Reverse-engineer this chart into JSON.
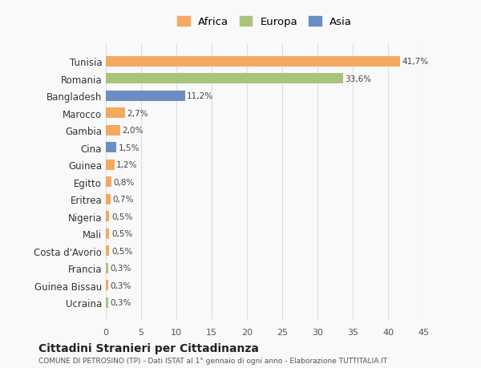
{
  "categories": [
    "Tunisia",
    "Romania",
    "Bangladesh",
    "Marocco",
    "Gambia",
    "Cina",
    "Guinea",
    "Egitto",
    "Eritrea",
    "Nigeria",
    "Mali",
    "Costa d'Avorio",
    "Francia",
    "Guinea Bissau",
    "Ucraina"
  ],
  "values": [
    41.7,
    33.6,
    11.2,
    2.7,
    2.0,
    1.5,
    1.2,
    0.8,
    0.7,
    0.5,
    0.5,
    0.5,
    0.3,
    0.3,
    0.3
  ],
  "labels": [
    "41,7%",
    "33,6%",
    "11,2%",
    "2,7%",
    "2,0%",
    "1,5%",
    "1,2%",
    "0,8%",
    "0,7%",
    "0,5%",
    "0,5%",
    "0,5%",
    "0,3%",
    "0,3%",
    "0,3%"
  ],
  "colors": [
    "#f4a860",
    "#a8c47a",
    "#6b8dc4",
    "#f4a860",
    "#f4a860",
    "#6b8dc4",
    "#f4a860",
    "#f4a860",
    "#f4a860",
    "#f4a860",
    "#f4a860",
    "#f4a860",
    "#a8c47a",
    "#f4a860",
    "#a8c47a"
  ],
  "continent": [
    "Africa",
    "Europa",
    "Asia",
    "Africa",
    "Africa",
    "Asia",
    "Africa",
    "Africa",
    "Africa",
    "Africa",
    "Africa",
    "Africa",
    "Europa",
    "Africa",
    "Europa"
  ],
  "legend_labels": [
    "Africa",
    "Europa",
    "Asia"
  ],
  "legend_colors": [
    "#f4a860",
    "#a8c47a",
    "#6b8dc4"
  ],
  "title": "Cittadini Stranieri per Cittadinanza",
  "subtitle": "COMUNE DI PETROSINO (TP) - Dati ISTAT al 1° gennaio di ogni anno - Elaborazione TUTTITALIA.IT",
  "xlim": [
    0,
    45
  ],
  "xticks": [
    0,
    5,
    10,
    15,
    20,
    25,
    30,
    35,
    40,
    45
  ],
  "bg_color": "#f9f9f9",
  "grid_color": "#dddddd",
  "bar_height": 0.6
}
